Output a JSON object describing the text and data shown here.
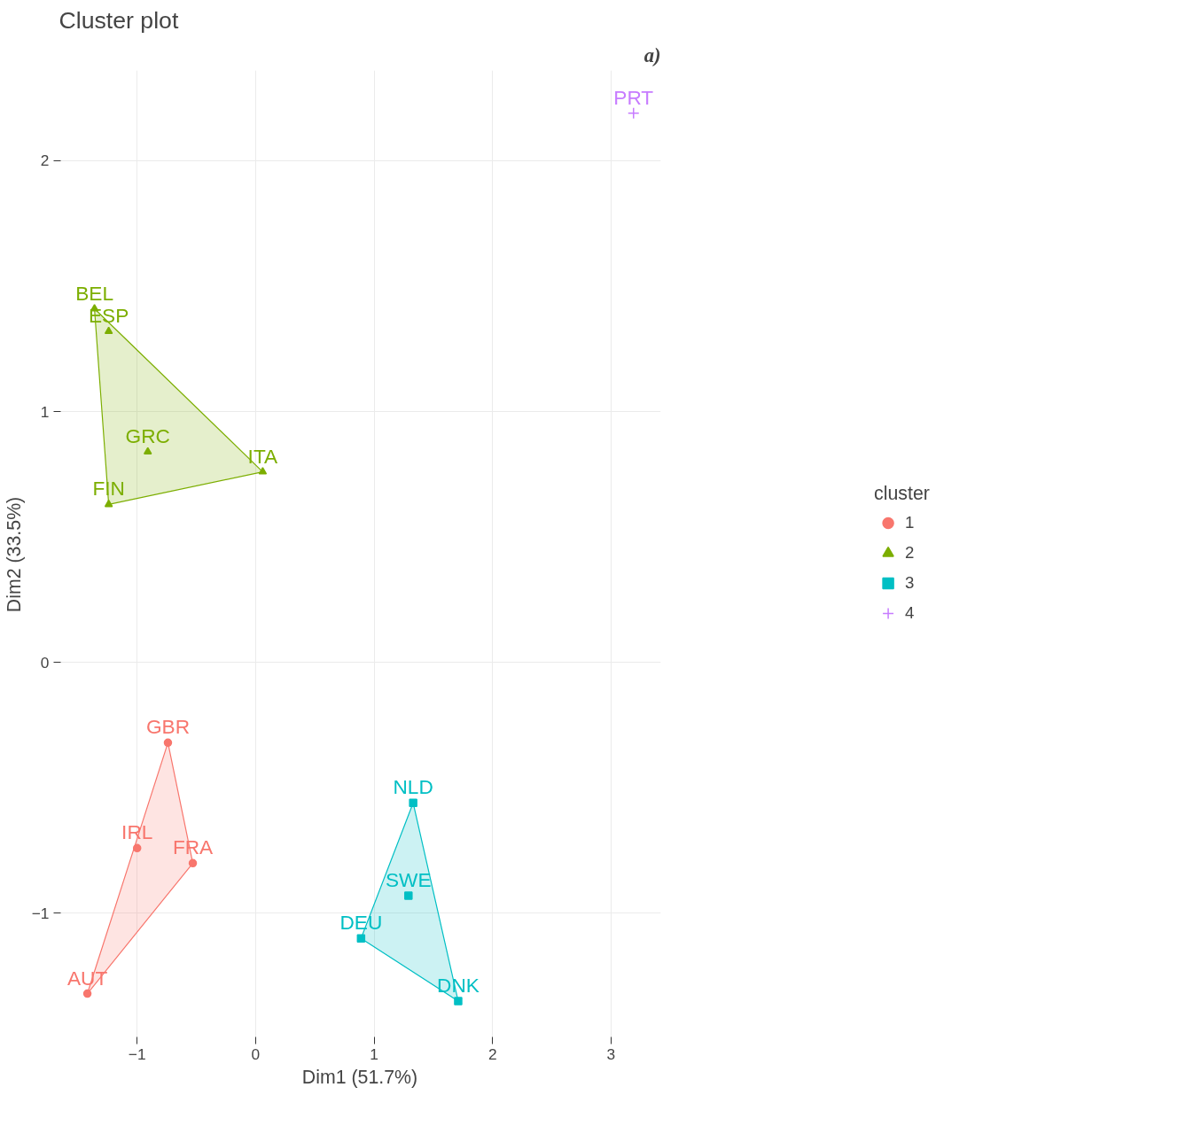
{
  "chart_data": {
    "type": "scatter",
    "title": "Cluster plot",
    "xlabel": "Dim1 (51.7%)",
    "ylabel": "Dim2 (33.5%)",
    "legend_title": "cluster",
    "legend": "right",
    "xlim": [
      -1.66,
      3.42
    ],
    "ylim": [
      -1.5,
      2.36
    ],
    "xticks": [
      -1,
      0,
      1,
      2,
      3
    ],
    "yticks": [
      -1,
      0,
      1,
      2
    ],
    "grid": true,
    "annotations": [
      "a)"
    ],
    "series": [
      {
        "type": "area",
        "color": "#f8766d",
        "x": [
          -0.74,
          -0.53,
          -1.42
        ],
        "values": [
          -0.32,
          -0.8,
          -1.32
        ]
      },
      {
        "type": "area",
        "color": "#7cae00",
        "x": [
          -1.36,
          0.06,
          -1.24
        ],
        "values": [
          1.41,
          0.76,
          0.63
        ]
      },
      {
        "type": "area",
        "color": "#00bfc4",
        "x": [
          1.33,
          1.71,
          0.89
        ],
        "values": [
          -0.56,
          -1.35,
          -1.1
        ]
      },
      {
        "name": "1",
        "color": "#f8766d",
        "marker": "circle",
        "x": [
          -0.74,
          -1.0,
          -0.53,
          -1.42
        ],
        "values": [
          -0.32,
          -0.74,
          -0.8,
          -1.32
        ],
        "value_labels": [
          "GBR",
          "IRL",
          "FRA",
          "AUT"
        ]
      },
      {
        "name": "2",
        "color": "#7cae00",
        "marker": "triangle",
        "x": [
          -1.36,
          -1.24,
          -0.91,
          0.06,
          -1.24
        ],
        "values": [
          1.41,
          1.32,
          0.84,
          0.76,
          0.63
        ],
        "value_labels": [
          "BEL",
          "ESP",
          "GRC",
          "ITA",
          "FIN"
        ]
      },
      {
        "name": "3",
        "color": "#00bfc4",
        "marker": "square",
        "x": [
          1.33,
          1.29,
          0.89,
          1.71
        ],
        "values": [
          -0.56,
          -0.93,
          -1.1,
          -1.35
        ],
        "value_labels": [
          "NLD",
          "SWE",
          "DEU",
          "DNK"
        ]
      },
      {
        "name": "4",
        "color": "#c77cff",
        "marker": "cross",
        "x": [
          3.19
        ],
        "values": [
          2.19
        ],
        "value_labels": [
          "PRT"
        ]
      }
    ]
  }
}
